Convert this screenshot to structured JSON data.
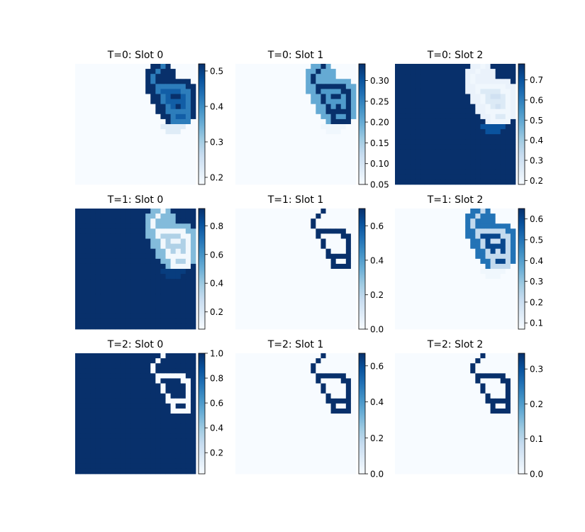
{
  "figure": {
    "colormap": "Blues",
    "panel_shape": "motif",
    "colors": {
      "low": "#f7fbff",
      "high": "#08306b",
      "tick": "#000000"
    }
  },
  "chart_data": [
    {
      "type": "heatmap",
      "title": "T=0: Slot 0",
      "colorbar": {
        "range": [
          0.18,
          0.52
        ],
        "ticks": [
          0.2,
          0.3,
          0.4,
          0.5
        ],
        "labels": [
          "0.2",
          "0.3",
          "0.4",
          "0.5"
        ]
      },
      "field": {
        "background": 0.18,
        "outer": 0.52,
        "ring": 0.42,
        "interior": 0.46,
        "inner_bars": 0.52,
        "glow": 0.22
      }
    },
    {
      "type": "heatmap",
      "title": "T=0: Slot 1",
      "colorbar": {
        "range": [
          0.05,
          0.34
        ],
        "ticks": [
          0.05,
          0.1,
          0.15,
          0.2,
          0.25,
          0.3
        ],
        "labels": [
          "0.05",
          "0.10",
          "0.15",
          "0.20",
          "0.25",
          "0.30"
        ]
      },
      "field": {
        "background": 0.05,
        "outer": 0.2,
        "ring": 0.34,
        "interior": 0.22,
        "inner_bars": 0.34,
        "glow": 0.06
      }
    },
    {
      "type": "heatmap",
      "title": "T=0: Slot 2",
      "colorbar": {
        "range": [
          0.18,
          0.78
        ],
        "ticks": [
          0.2,
          0.3,
          0.4,
          0.5,
          0.6,
          0.7
        ],
        "labels": [
          "0.2",
          "0.3",
          "0.4",
          "0.5",
          "0.6",
          "0.7"
        ]
      },
      "field": {
        "background": 0.78,
        "outer": 0.22,
        "ring": 0.2,
        "interior": 0.26,
        "inner_bars": 0.3,
        "glow": 0.7
      }
    },
    {
      "type": "heatmap",
      "title": "T=1: Slot 0",
      "colorbar": {
        "range": [
          0.08,
          0.92
        ],
        "ticks": [
          0.2,
          0.4,
          0.6,
          0.8
        ],
        "labels": [
          "0.2",
          "0.4",
          "0.6",
          "0.8"
        ]
      },
      "field": {
        "background": 0.92,
        "outer": 0.45,
        "ring": 0.1,
        "interior": 0.35,
        "inner_bars": 0.12,
        "glow": 0.88
      }
    },
    {
      "type": "heatmap",
      "title": "T=1: Slot 1",
      "colorbar": {
        "range": [
          0.0,
          0.7
        ],
        "ticks": [
          0.0,
          0.2,
          0.4,
          0.6
        ],
        "labels": [
          "0.0",
          "0.2",
          "0.4",
          "0.6"
        ]
      },
      "field": {
        "background": 0.0,
        "outer": 0.0,
        "ring": 0.7,
        "interior": 0.0,
        "inner_bars": 0.0,
        "glow": 0.0
      }
    },
    {
      "type": "heatmap",
      "title": "T=1: Slot 2",
      "colorbar": {
        "range": [
          0.07,
          0.65
        ],
        "ticks": [
          0.1,
          0.2,
          0.3,
          0.4,
          0.5,
          0.6
        ],
        "labels": [
          "0.1",
          "0.2",
          "0.3",
          "0.4",
          "0.5",
          "0.6"
        ]
      },
      "field": {
        "background": 0.07,
        "outer": 0.5,
        "ring": 0.22,
        "interior": 0.6,
        "inner_bars": 0.2,
        "glow": 0.09
      }
    },
    {
      "type": "heatmap",
      "title": "T=2: Slot 0",
      "colorbar": {
        "range": [
          0.03,
          1.0
        ],
        "ticks": [
          0.2,
          0.4,
          0.6,
          0.8,
          1.0
        ],
        "labels": [
          "0.2",
          "0.4",
          "0.6",
          "0.8",
          "1.0"
        ]
      },
      "field": {
        "background": 1.0,
        "outer": 1.0,
        "ring": 0.03,
        "interior": 1.0,
        "inner_bars": 1.0,
        "glow": 1.0
      }
    },
    {
      "type": "heatmap",
      "title": "T=2: Slot 1",
      "colorbar": {
        "range": [
          0.0,
          0.67
        ],
        "ticks": [
          0.0,
          0.2,
          0.4,
          0.6
        ],
        "labels": [
          "0.0",
          "0.2",
          "0.4",
          "0.6"
        ]
      },
      "field": {
        "background": 0.0,
        "outer": 0.0,
        "ring": 0.67,
        "interior": 0.0,
        "inner_bars": 0.0,
        "glow": 0.0
      }
    },
    {
      "type": "heatmap",
      "title": "T=2: Slot 2",
      "colorbar": {
        "range": [
          0.0,
          0.345
        ],
        "ticks": [
          0.0,
          0.1,
          0.2,
          0.3
        ],
        "labels": [
          "0.0",
          "0.1",
          "0.2",
          "0.3"
        ]
      },
      "field": {
        "background": 0.0,
        "outer": 0.0,
        "ring": 0.345,
        "interior": 0.0,
        "inner_bars": 0.0,
        "glow": 0.0
      }
    }
  ]
}
